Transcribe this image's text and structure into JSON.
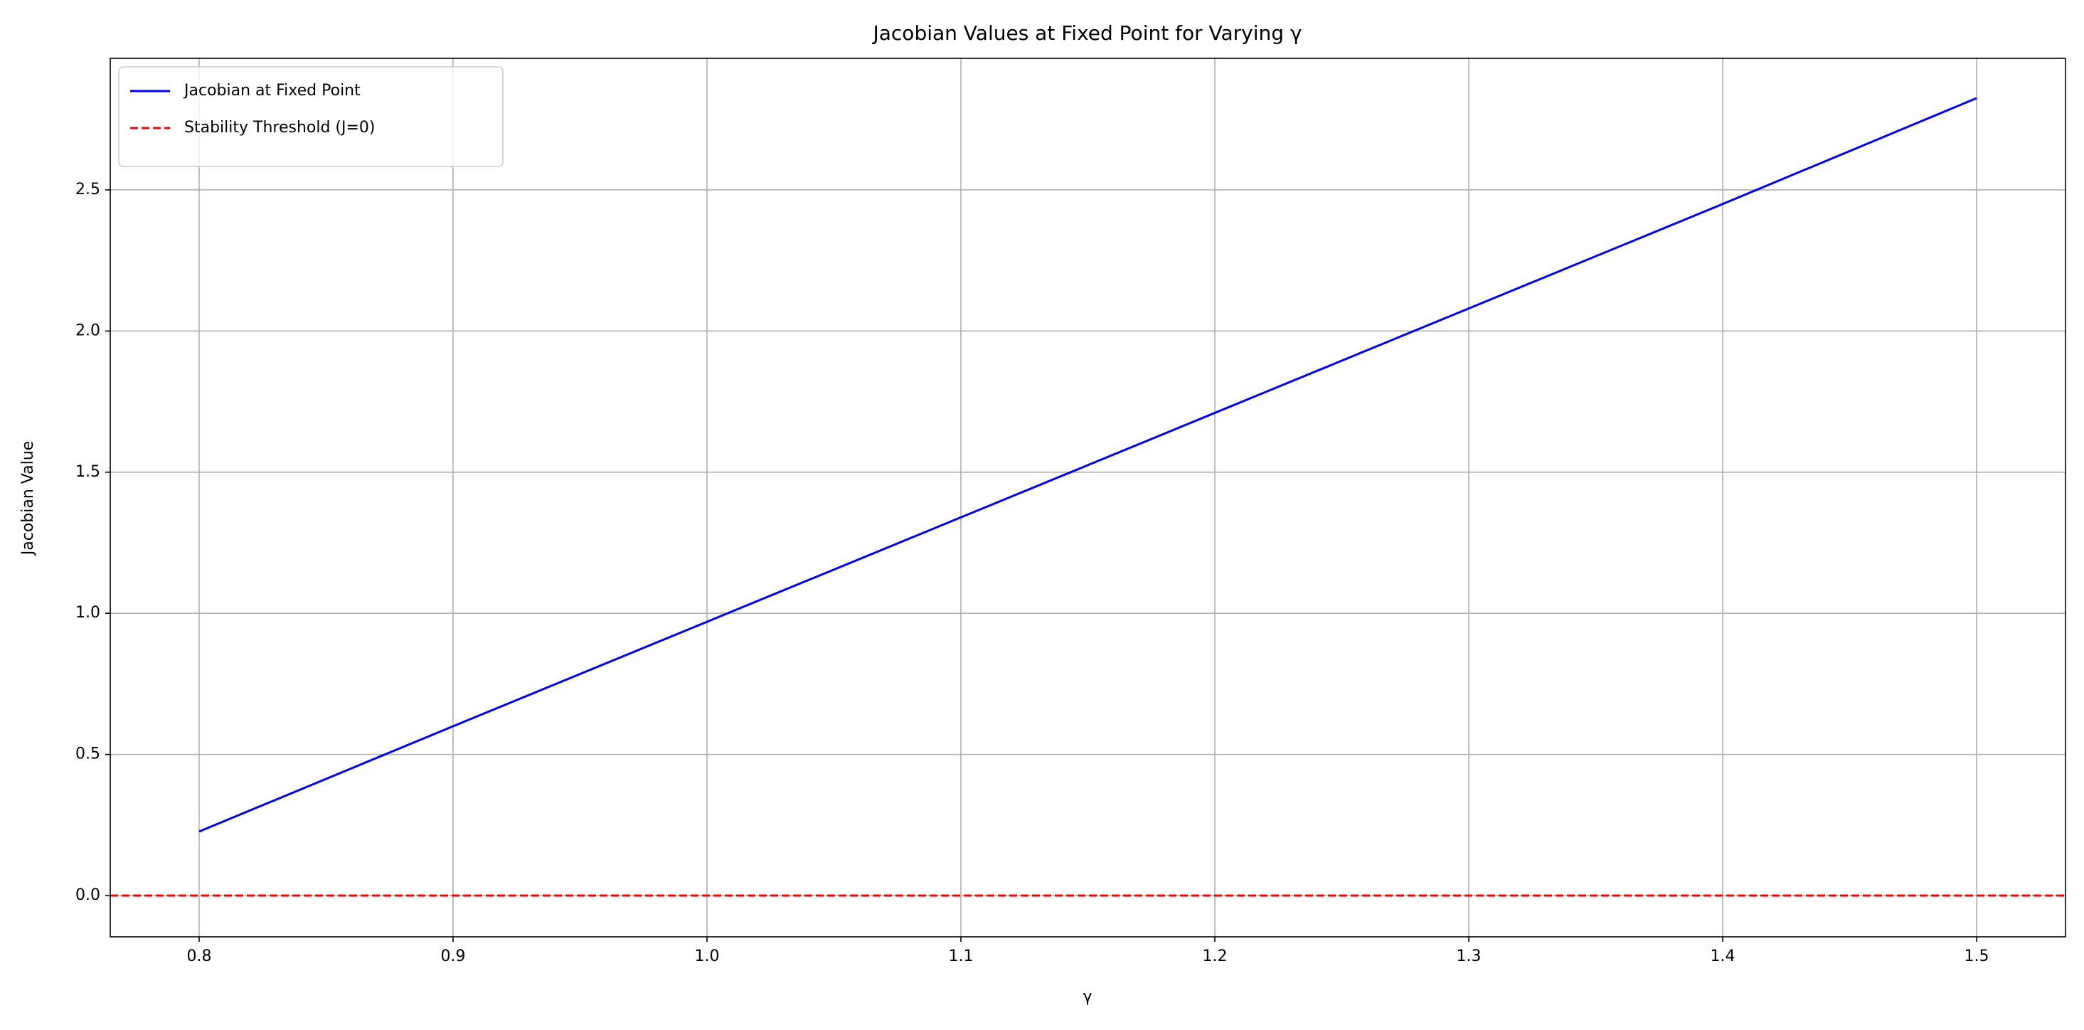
{
  "chart_data": {
    "type": "line",
    "title": "Jacobian Values at Fixed Point for Varying γ",
    "xlabel": "γ",
    "ylabel": "Jacobian Value",
    "x": [
      0.8,
      0.9,
      1.0,
      1.1,
      1.2,
      1.3,
      1.4,
      1.5
    ],
    "series": [
      {
        "name": "Jacobian at Fixed Point",
        "color": "#0000ff",
        "values": [
          0.227,
          0.6,
          0.97,
          1.34,
          1.71,
          2.08,
          2.45,
          2.825
        ]
      }
    ],
    "threshold": {
      "name": "Stability Threshold (J=0)",
      "color": "#ff0000",
      "value": 0,
      "dashed": true
    },
    "xlim": [
      0.765,
      1.535
    ],
    "ylim": [
      -0.146,
      2.966
    ],
    "xticks": [
      0.8,
      0.9,
      {
        "value": 1.0,
        "label": "1.0"
      },
      1.1,
      1.2,
      1.3,
      1.4,
      1.5
    ],
    "yticks": [
      {
        "value": 0,
        "label": "0.0"
      },
      0.5,
      {
        "value": 1,
        "label": "1.0"
      },
      1.5,
      {
        "value": 2,
        "label": "2.0"
      },
      2.5
    ],
    "grid": true,
    "legend": "upper-left"
  }
}
